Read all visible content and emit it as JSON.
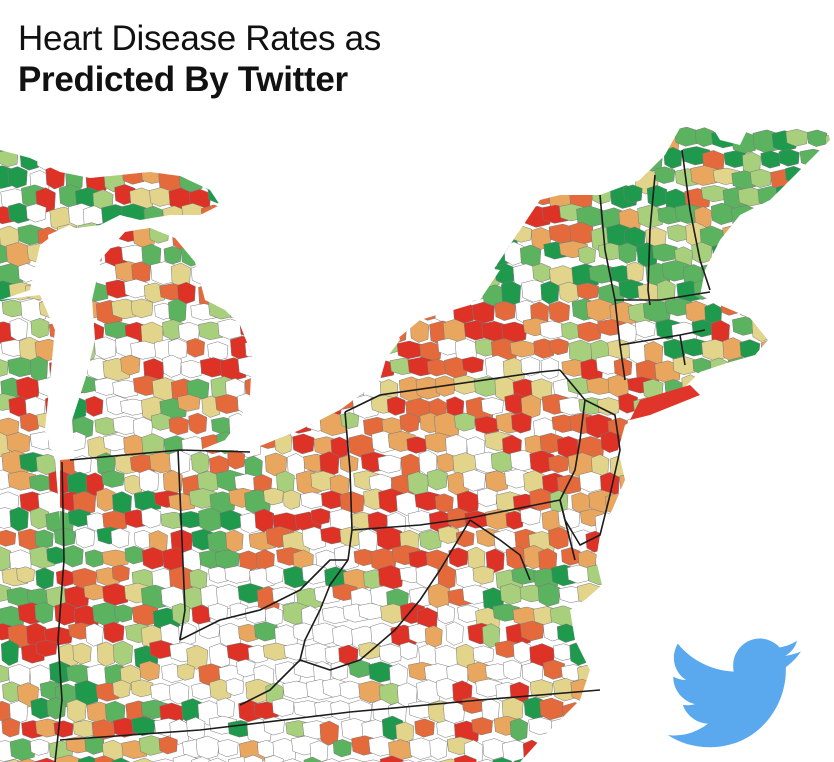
{
  "title": {
    "line1": "Heart Disease Rates as",
    "line2": "Predicted By Twitter"
  },
  "map": {
    "region": "Eastern United States",
    "unit": "county",
    "color_scale": {
      "high": "#de3226",
      "mid_high": "#e46a3c",
      "medium": "#e8a65e",
      "mid_low": "#e2d48a",
      "low_light": "#a8cf7c",
      "low": "#5bb35f",
      "lowest": "#1f9a4d",
      "no_data": "#ffffff"
    },
    "border_color": "#222222"
  },
  "logo": {
    "icon": "twitter-bird-icon",
    "color": "#5aa9ee"
  }
}
